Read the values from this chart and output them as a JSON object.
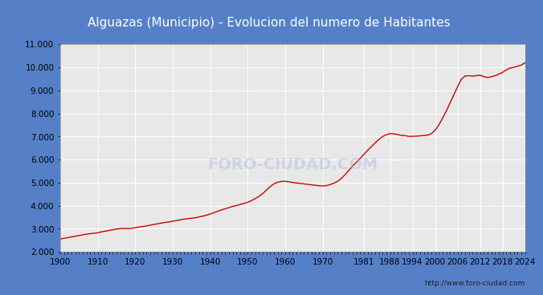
{
  "title": "Alguazas (Municipio) - Evolucion del numero de Habitantes",
  "title_bg_color": "#4d7fd4",
  "title_text_color": "white",
  "line_color": "#cc0000",
  "fig_bg_color": "#5580c8",
  "plot_bg_color": "#e8e8e8",
  "grid_color": "white",
  "watermark": "FORO-CIUDAD.COM",
  "url": "http://www.foro-ciudad.com",
  "ylim": [
    2000,
    11000
  ],
  "ytick_step": 1000,
  "xtick_labels": [
    1900,
    1910,
    1920,
    1930,
    1940,
    1950,
    1960,
    1970,
    1981,
    1988,
    1994,
    2000,
    2006,
    2012,
    2018,
    2024
  ],
  "years": [
    1900,
    1901,
    1902,
    1903,
    1904,
    1905,
    1906,
    1907,
    1908,
    1909,
    1910,
    1911,
    1912,
    1913,
    1914,
    1915,
    1916,
    1917,
    1918,
    1919,
    1920,
    1921,
    1922,
    1923,
    1924,
    1925,
    1926,
    1927,
    1928,
    1929,
    1930,
    1931,
    1932,
    1933,
    1934,
    1935,
    1936,
    1937,
    1938,
    1939,
    1940,
    1941,
    1942,
    1943,
    1944,
    1945,
    1946,
    1947,
    1948,
    1949,
    1950,
    1951,
    1952,
    1953,
    1954,
    1955,
    1956,
    1957,
    1958,
    1959,
    1960,
    1961,
    1962,
    1963,
    1964,
    1965,
    1966,
    1967,
    1968,
    1969,
    1970,
    1971,
    1972,
    1973,
    1974,
    1975,
    1976,
    1977,
    1978,
    1979,
    1980,
    1981,
    1982,
    1983,
    1984,
    1985,
    1986,
    1987,
    1988,
    1989,
    1990,
    1991,
    1992,
    1993,
    1994,
    1995,
    1996,
    1997,
    1998,
    1999,
    2000,
    2001,
    2002,
    2003,
    2004,
    2005,
    2006,
    2007,
    2008,
    2009,
    2010,
    2011,
    2012,
    2013,
    2014,
    2015,
    2016,
    2017,
    2018,
    2019,
    2020,
    2021,
    2022,
    2023,
    2024
  ],
  "population": [
    2560,
    2590,
    2620,
    2650,
    2680,
    2710,
    2740,
    2770,
    2790,
    2810,
    2830,
    2870,
    2900,
    2930,
    2960,
    2990,
    3010,
    3020,
    3010,
    3020,
    3050,
    3080,
    3100,
    3130,
    3160,
    3190,
    3220,
    3250,
    3280,
    3300,
    3330,
    3360,
    3390,
    3420,
    3440,
    3460,
    3480,
    3510,
    3550,
    3590,
    3640,
    3700,
    3760,
    3820,
    3870,
    3920,
    3970,
    4010,
    4060,
    4100,
    4150,
    4220,
    4310,
    4400,
    4520,
    4680,
    4830,
    4950,
    5020,
    5050,
    5060,
    5040,
    5010,
    4990,
    4970,
    4950,
    4930,
    4910,
    4890,
    4870,
    4860,
    4870,
    4920,
    4980,
    5060,
    5180,
    5350,
    5530,
    5720,
    5880,
    6050,
    6220,
    6400,
    6560,
    6720,
    6870,
    7000,
    7080,
    7130,
    7120,
    7090,
    7050,
    7040,
    7010,
    7010,
    7020,
    7030,
    7050,
    7060,
    7120,
    7270,
    7500,
    7790,
    8100,
    8450,
    8800,
    9150,
    9480,
    9620,
    9640,
    9620,
    9640,
    9660,
    9600,
    9560,
    9590,
    9640,
    9700,
    9780,
    9890,
    9970,
    10000,
    10050,
    10100,
    10200
  ]
}
